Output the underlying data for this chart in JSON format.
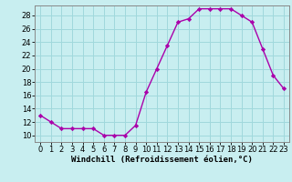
{
  "x": [
    0,
    1,
    2,
    3,
    4,
    5,
    6,
    7,
    8,
    9,
    10,
    11,
    12,
    13,
    14,
    15,
    16,
    17,
    18,
    19,
    20,
    21,
    22,
    23
  ],
  "y": [
    13,
    12,
    11,
    11,
    11,
    11,
    10,
    10,
    10,
    11.5,
    16.5,
    20,
    23.5,
    27,
    27.5,
    29,
    29,
    29,
    29,
    28,
    27,
    23,
    19,
    17
  ],
  "line_color": "#aa00aa",
  "marker": "D",
  "markersize": 2.2,
  "linewidth": 1.0,
  "bg_color": "#c8eef0",
  "grid_color": "#a0d8dc",
  "xlabel": "Windchill (Refroidissement éolien,°C)",
  "xlim": [
    -0.5,
    23.5
  ],
  "ylim": [
    9,
    29.5
  ],
  "yticks": [
    10,
    12,
    14,
    16,
    18,
    20,
    22,
    24,
    26,
    28
  ],
  "xticks": [
    0,
    1,
    2,
    3,
    4,
    5,
    6,
    7,
    8,
    9,
    10,
    11,
    12,
    13,
    14,
    15,
    16,
    17,
    18,
    19,
    20,
    21,
    22,
    23
  ],
  "xlabel_fontsize": 6.5,
  "tick_fontsize": 6.0,
  "spine_color": "#888888"
}
